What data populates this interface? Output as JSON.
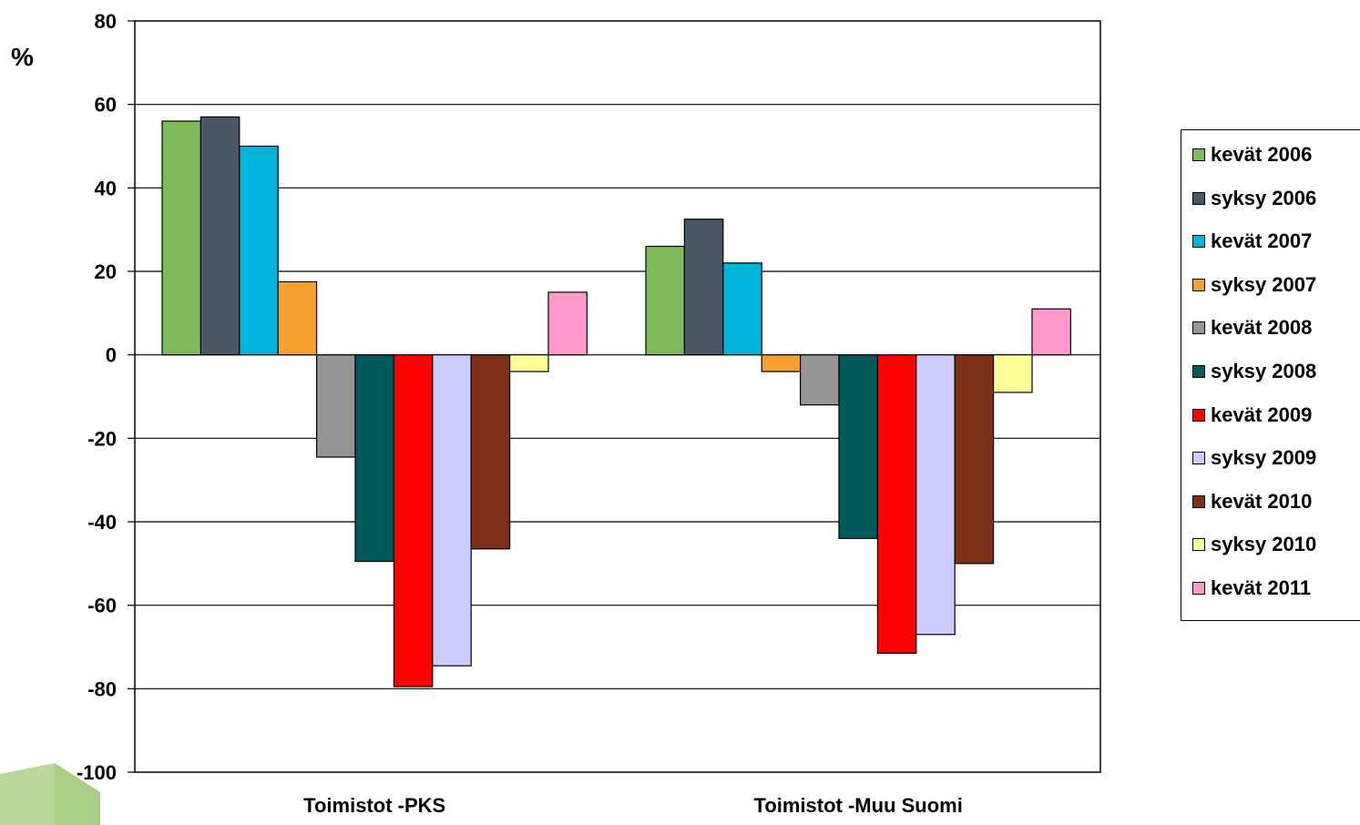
{
  "chart_data": {
    "type": "bar",
    "title": "",
    "xlabel": "",
    "ylabel": "%",
    "ylim": [
      -100,
      80
    ],
    "yticks": [
      "80",
      "60",
      "40",
      "20",
      "0",
      "-20",
      "-40",
      "-60",
      "-80",
      "-100"
    ],
    "grid": true,
    "legend_position": "right",
    "categories": [
      "Toimistot -PKS",
      "Toimistot -Muu Suomi"
    ],
    "series": [
      {
        "name": "kevät 2006",
        "color": "#7fba5a",
        "values": [
          56,
          26
        ]
      },
      {
        "name": "syksy 2006",
        "color": "#4a5866",
        "values": [
          57,
          32.5
        ]
      },
      {
        "name": "kevät 2007",
        "color": "#00b4dc",
        "values": [
          50,
          22
        ]
      },
      {
        "name": "syksy 2007",
        "color": "#f4a030",
        "values": [
          17.5,
          -4
        ]
      },
      {
        "name": "kevät 2008",
        "color": "#969696",
        "values": [
          -24.5,
          -12
        ]
      },
      {
        "name": "syksy 2008",
        "color": "#005a5a",
        "values": [
          -49.5,
          -44
        ]
      },
      {
        "name": "kevät 2009",
        "color": "#ff0000",
        "values": [
          -79.5,
          -71.5
        ]
      },
      {
        "name": "syksy 2009",
        "color": "#ccccff",
        "values": [
          -74.5,
          -67
        ]
      },
      {
        "name": "kevät 2010",
        "color": "#7f3018",
        "values": [
          -46.5,
          -50
        ]
      },
      {
        "name": "syksy 2010",
        "color": "#ffff99",
        "values": [
          -4,
          -9
        ]
      },
      {
        "name": "kevät 2011",
        "color": "#ff99cc",
        "values": [
          15,
          11
        ]
      }
    ]
  }
}
